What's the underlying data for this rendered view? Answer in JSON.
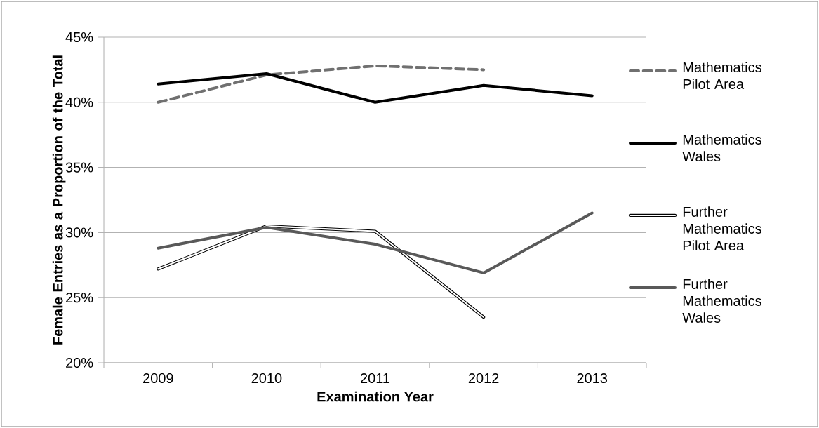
{
  "chart_data": {
    "type": "line",
    "xlabel": "Examination Year",
    "ylabel": "Female Entries as a Proportion of the Total",
    "categories": [
      "2009",
      "2010",
      "2011",
      "2012",
      "2013"
    ],
    "series": [
      {
        "name": "Mathematics Pilot Area",
        "color": "#707070",
        "line_style": "dashed",
        "values": [
          40.0,
          42.1,
          42.8,
          42.5,
          null
        ]
      },
      {
        "name": "Mathematics Wales",
        "color": "#000000",
        "values": [
          41.4,
          42.2,
          40.0,
          41.3,
          40.5
        ]
      },
      {
        "name": "Further Mathematics Pilot Area",
        "color": "#000000",
        "values": [
          27.2,
          30.5,
          30.1,
          23.5,
          null
        ]
      },
      {
        "name": "Further Mathematics Wales",
        "color": "#595959",
        "values": [
          28.8,
          30.4,
          29.1,
          26.9,
          31.5
        ]
      }
    ],
    "ylim": [
      20,
      45
    ],
    "yticks": [
      {
        "value": 20,
        "label": "20%"
      },
      {
        "value": 25,
        "label": "25%"
      },
      {
        "value": 30,
        "label": "30%"
      },
      {
        "value": 35,
        "label": "35%"
      },
      {
        "value": 40,
        "label": "40%"
      },
      {
        "value": 45,
        "label": "45%"
      }
    ],
    "grid": "y",
    "legend": "right",
    "line_style": "solid",
    "marker": "none"
  }
}
